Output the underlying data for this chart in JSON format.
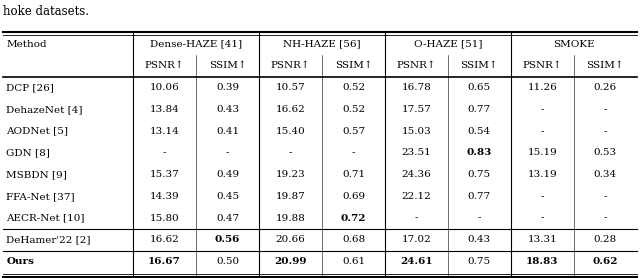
{
  "title_text": "hoke datasets.",
  "col_group_labels": [
    "Dense-HAZE [41]",
    "NH-HAZE [56]",
    "O-HAZE [51]",
    "SMOKE"
  ],
  "metric_label": "PSNR↑",
  "metric_label2": "SSIM↑",
  "rows": [
    {
      "method": "DCP [26]",
      "vals": [
        "10.06",
        "0.39",
        "10.57",
        "0.52",
        "16.78",
        "0.65",
        "11.26",
        "0.26"
      ],
      "bold_vals": [],
      "bold_method": false
    },
    {
      "method": "DehazeNet [4]",
      "vals": [
        "13.84",
        "0.43",
        "16.62",
        "0.52",
        "17.57",
        "0.77",
        "-",
        "-"
      ],
      "bold_vals": [],
      "bold_method": false
    },
    {
      "method": "AODNet [5]",
      "vals": [
        "13.14",
        "0.41",
        "15.40",
        "0.57",
        "15.03",
        "0.54",
        "-",
        "-"
      ],
      "bold_vals": [],
      "bold_method": false
    },
    {
      "method": "GDN [8]",
      "vals": [
        "-",
        "-",
        "-",
        "-",
        "23.51",
        "0.83",
        "15.19",
        "0.53"
      ],
      "bold_vals": [
        5
      ],
      "bold_method": false
    },
    {
      "method": "MSBDN [9]",
      "vals": [
        "15.37",
        "0.49",
        "19.23",
        "0.71",
        "24.36",
        "0.75",
        "13.19",
        "0.34"
      ],
      "bold_vals": [],
      "bold_method": false
    },
    {
      "method": "FFA-Net [37]",
      "vals": [
        "14.39",
        "0.45",
        "19.87",
        "0.69",
        "22.12",
        "0.77",
        "-",
        "-"
      ],
      "bold_vals": [],
      "bold_method": false
    },
    {
      "method": "AECR-Net [10]",
      "vals": [
        "15.80",
        "0.47",
        "19.88",
        "0.72",
        "-",
        "-",
        "-",
        "-"
      ],
      "bold_vals": [
        3
      ],
      "bold_method": false
    },
    {
      "method": "DeHamer'22 [2]",
      "vals": [
        "16.62",
        "0.56",
        "20.66",
        "0.68",
        "17.02",
        "0.43",
        "13.31",
        "0.28"
      ],
      "bold_vals": [
        1
      ],
      "bold_method": false
    },
    {
      "method": "Ours",
      "vals": [
        "16.67",
        "0.50",
        "20.99",
        "0.61",
        "24.61",
        "0.75",
        "18.83",
        "0.62"
      ],
      "bold_vals": [
        0,
        2,
        4,
        6,
        7
      ],
      "bold_method": true
    }
  ],
  "figsize": [
    6.4,
    2.78
  ],
  "dpi": 100,
  "bg_color": "#ffffff",
  "fs": 7.5,
  "fs_title": 8.5
}
